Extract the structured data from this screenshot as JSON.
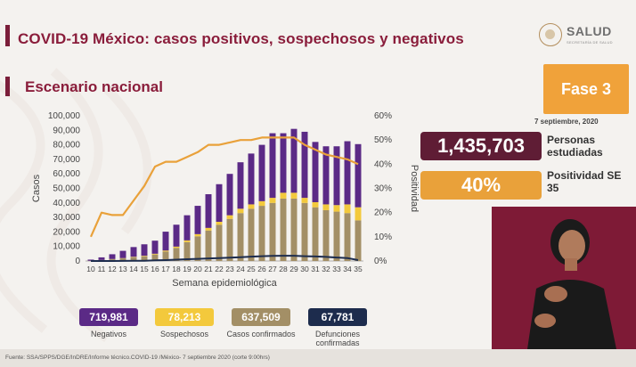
{
  "header": {
    "title": "COVID-19 México: casos positivos, sospechosos y negativos",
    "subtitle": "Escenario nacional",
    "logo_text": "SALUD",
    "logo_sub": "SECRETARÍA DE SALUD"
  },
  "phase": {
    "label": "Fase 3",
    "date": "7 septiembre, 2020"
  },
  "kpis": {
    "persons_value": "1,435,703",
    "persons_label": "Personas estudiadas",
    "positivity_value": "40%",
    "positivity_label": "Positividad SE 35"
  },
  "stats": [
    {
      "value": "719,981",
      "label": "Negativos"
    },
    {
      "value": "78,213",
      "label": "Sospechosos"
    },
    {
      "value": "637,509",
      "label": "Casos confirmados"
    },
    {
      "value": "67,781",
      "label": "Defunciones confirmadas"
    }
  ],
  "footer": "Fuente: SSA/SPPS/DGE/InDRE/Informe técnico.COVID-19 /México- 7 septiembre 2020 (corte 9:00hrs)",
  "colors": {
    "negativos": "#5b2a86",
    "sospechosos": "#f3c93c",
    "confirmados": "#a38f66",
    "defunciones": "#1d2c4d",
    "positividad": "#e9a13a",
    "brand": "#8a1d3b"
  },
  "chart_data": {
    "type": "bar",
    "xlabel": "Semana epidemiológica",
    "ylabel": "Casos",
    "y2label": "Positividad",
    "categories": [
      "10",
      "11",
      "12",
      "13",
      "14",
      "15",
      "16",
      "17",
      "18",
      "19",
      "20",
      "21",
      "22",
      "23",
      "24",
      "25",
      "26",
      "27",
      "28",
      "29",
      "30",
      "31",
      "32",
      "33",
      "34",
      "35"
    ],
    "yticks": [
      "0",
      "10,000",
      "20,000",
      "30,000",
      "40,000",
      "50,000",
      "60,000",
      "70,000",
      "80,000",
      "90,000",
      "100,000"
    ],
    "y2ticks": [
      "0%",
      "10%",
      "20%",
      "30%",
      "40%",
      "50%",
      "60%"
    ],
    "ylim": [
      0,
      100000
    ],
    "y2lim": [
      0,
      0.6
    ],
    "stacked": true,
    "series": [
      {
        "name": "Casos confirmados",
        "type": "bar",
        "values": [
          100,
          600,
          1200,
          1800,
          2600,
          3200,
          4500,
          6500,
          9000,
          13000,
          17000,
          21000,
          25000,
          29000,
          33000,
          36000,
          38000,
          40000,
          43000,
          43000,
          40000,
          37000,
          35000,
          34000,
          33000,
          28000
        ]
      },
      {
        "name": "Sospechosos",
        "type": "bar",
        "values": [
          50,
          100,
          150,
          200,
          300,
          400,
          500,
          700,
          900,
          1200,
          1500,
          1800,
          2000,
          2500,
          3000,
          3000,
          3200,
          3500,
          4000,
          4000,
          3500,
          3500,
          4000,
          4500,
          6000,
          9000
        ]
      },
      {
        "name": "Negativos",
        "type": "bar",
        "values": [
          800,
          1800,
          3300,
          5000,
          6700,
          7900,
          9000,
          13000,
          15100,
          17300,
          19500,
          23200,
          25900,
          28500,
          32000,
          35000,
          38800,
          44500,
          41000,
          44000,
          45500,
          41500,
          40000,
          40500,
          43500,
          43500
        ]
      },
      {
        "name": "Defunciones confirmadas",
        "type": "line",
        "axis": "left",
        "values": [
          0,
          0,
          20,
          50,
          100,
          200,
          400,
          600,
          900,
          1200,
          1500,
          1800,
          2000,
          2300,
          2600,
          3000,
          3300,
          3500,
          3600,
          3600,
          3300,
          3100,
          2800,
          2400,
          2000,
          600
        ]
      },
      {
        "name": "Positividad",
        "type": "line",
        "axis": "right",
        "values": [
          0.1,
          0.2,
          0.19,
          0.19,
          0.25,
          0.31,
          0.39,
          0.41,
          0.41,
          0.43,
          0.45,
          0.48,
          0.48,
          0.49,
          0.5,
          0.5,
          0.51,
          0.51,
          0.51,
          0.51,
          0.48,
          0.46,
          0.44,
          0.43,
          0.42,
          0.4
        ]
      }
    ]
  }
}
